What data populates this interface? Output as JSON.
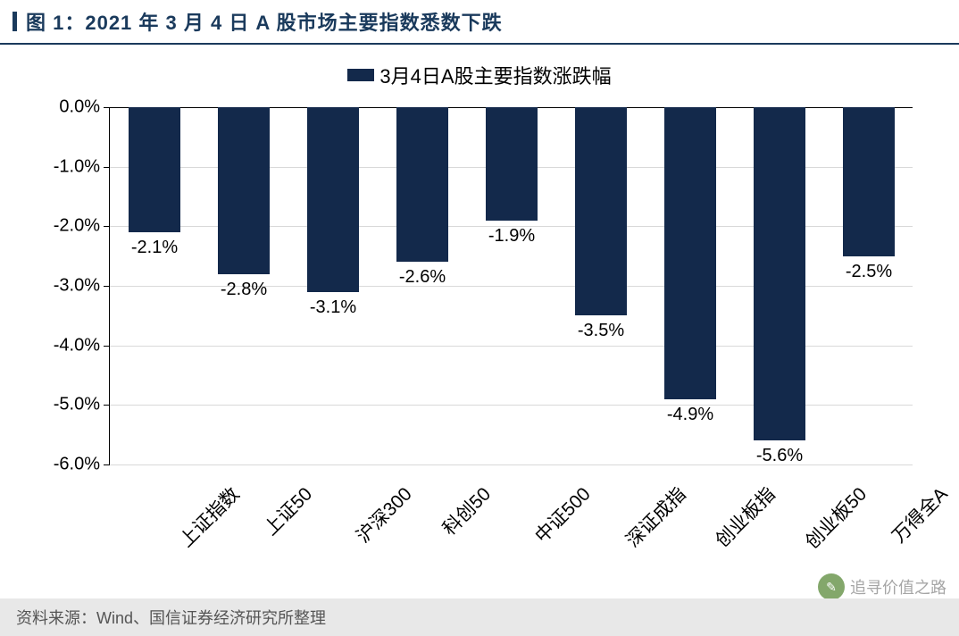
{
  "title": "图 1：2021 年 3 月 4 日 A 股市场主要指数悉数下跌",
  "legend": {
    "label": "3月4日A股主要指数涨跌幅",
    "swatch_color": "#13294b"
  },
  "chart": {
    "type": "bar",
    "bar_color": "#13294b",
    "background_color": "#ffffff",
    "grid_color": "#d9d9d9",
    "axis_color": "#000000",
    "ylim": [
      -6.0,
      0.0
    ],
    "ytick_step": 1.0,
    "ytick_format_suffix": "%",
    "ytick_decimals": 1,
    "bar_width_ratio": 0.58,
    "categories": [
      "上证指数",
      "上证50",
      "沪深300",
      "科创50",
      "中证500",
      "深证成指",
      "创业板指",
      "创业板50",
      "万得全A"
    ],
    "values": [
      -2.1,
      -2.8,
      -3.1,
      -2.6,
      -1.9,
      -3.5,
      -4.9,
      -5.6,
      -2.5
    ],
    "value_labels": [
      "-2.1%",
      "-2.8%",
      "-3.1%",
      "-2.6%",
      "-1.9%",
      "-3.5%",
      "-4.9%",
      "-5.6%",
      "-2.5%"
    ],
    "xlabel_rotation_deg": -45,
    "label_fontsize": 20,
    "title_fontsize": 22
  },
  "source": "资料来源：Wind、国信证券经济研究所整理",
  "watermark": {
    "text": "追寻价值之路",
    "icon_bg": "#5a8a3a",
    "icon_glyph": "✎"
  }
}
